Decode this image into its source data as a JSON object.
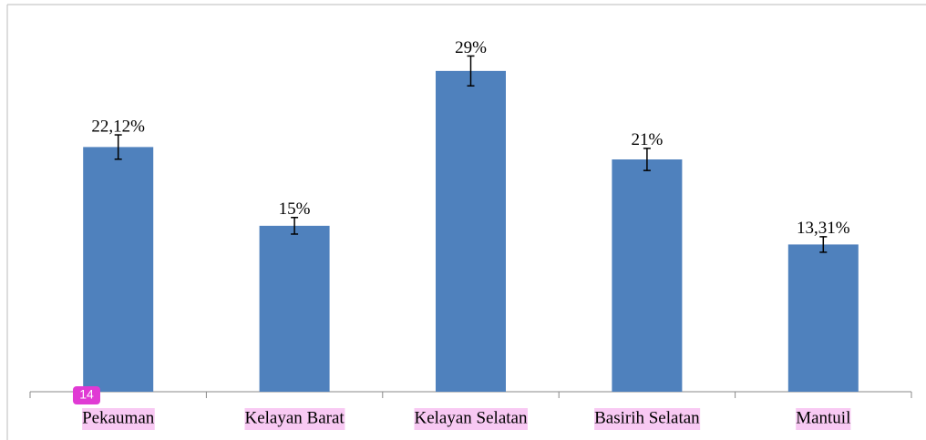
{
  "chart_data": {
    "type": "bar",
    "categories": [
      "Pekauman",
      "Kelayan Barat",
      "Kelayan Selatan",
      "Basirih Selatan",
      "Mantuil"
    ],
    "values": [
      22.12,
      15,
      29,
      21,
      13.31
    ],
    "value_labels": [
      "22,12%",
      "15%",
      "29%",
      "21%",
      "13,31%"
    ],
    "errors": [
      1.1,
      0.75,
      1.35,
      1.0,
      0.7
    ],
    "color": "#4f81bd",
    "ylim": [
      0,
      35
    ],
    "grid": false,
    "annotation": "14"
  }
}
